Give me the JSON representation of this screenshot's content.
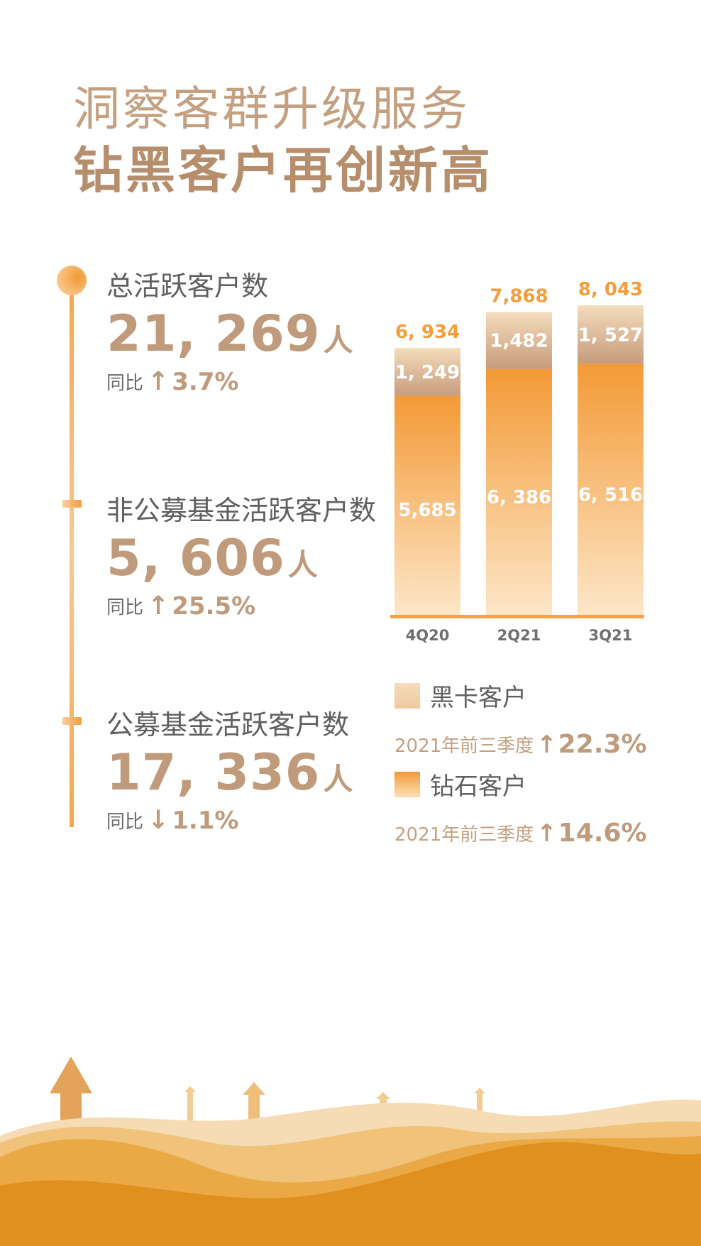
{
  "header": {
    "line1": "洞察客群升级服务",
    "line2": "钻黑客户再创新高"
  },
  "metrics": [
    {
      "label": "总活跃客户数",
      "value": "21, 269",
      "unit": "人",
      "yoy_label": "同比",
      "direction": "up",
      "arrow": "↑",
      "pct": "3.7%"
    },
    {
      "label": "非公募基金活跃客户数",
      "value": "5, 606",
      "unit": "人",
      "yoy_label": "同比",
      "direction": "up",
      "arrow": "↑",
      "pct": "25.5%"
    },
    {
      "label": "公募基金活跃客户数",
      "value": "17, 336",
      "unit": "人",
      "yoy_label": "同比",
      "direction": "down",
      "arrow": "↓",
      "pct": "1.1%"
    }
  ],
  "chart_data": {
    "type": "bar",
    "stacked": true,
    "categories": [
      "4Q20",
      "2Q21",
      "3Q21"
    ],
    "series": [
      {
        "name": "钻石客户",
        "values": [
          5685,
          6386,
          6516
        ],
        "labels": [
          "5,685",
          "6, 386",
          "6, 516"
        ],
        "color": "#f39d3d"
      },
      {
        "name": "黑卡客户",
        "values": [
          1249,
          1482,
          1527
        ],
        "labels": [
          "1, 249",
          "1,482",
          "1, 527"
        ],
        "color": "#f3d7b4"
      }
    ],
    "totals": [
      6934,
      7868,
      8043
    ],
    "total_labels": [
      "6, 934",
      "7,868",
      "8, 043"
    ]
  },
  "legend": [
    {
      "name": "黑卡客户",
      "growth_label": "2021年前三季度",
      "arrow": "↑",
      "pct": "22.3%",
      "color": "#f3d7b4"
    },
    {
      "name": "钻石客户",
      "growth_label": "2021年前三季度",
      "arrow": "↑",
      "pct": "14.6%",
      "color": "#f39d3d"
    }
  ],
  "colors": {
    "accent": "#f39d3d",
    "brown": "#bf9a7b",
    "hill_dark": "#e09424",
    "hill_light": "#f5d5a6"
  }
}
